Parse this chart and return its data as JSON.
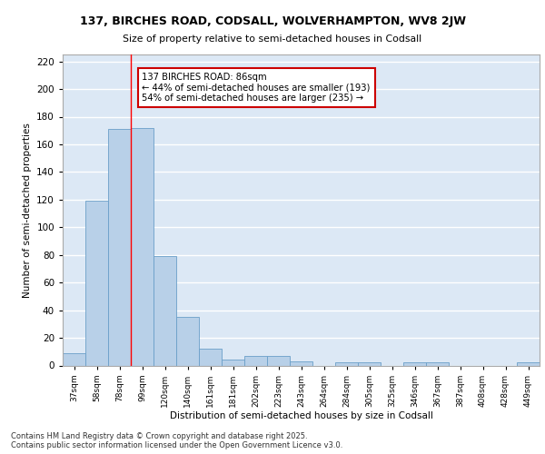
{
  "title1": "137, BIRCHES ROAD, CODSALL, WOLVERHAMPTON, WV8 2JW",
  "title2": "Size of property relative to semi-detached houses in Codsall",
  "xlabel": "Distribution of semi-detached houses by size in Codsall",
  "ylabel": "Number of semi-detached properties",
  "bar_labels": [
    "37sqm",
    "58sqm",
    "78sqm",
    "99sqm",
    "120sqm",
    "140sqm",
    "161sqm",
    "181sqm",
    "202sqm",
    "223sqm",
    "243sqm",
    "264sqm",
    "284sqm",
    "305sqm",
    "325sqm",
    "346sqm",
    "367sqm",
    "387sqm",
    "408sqm",
    "428sqm",
    "449sqm"
  ],
  "bar_values": [
    9,
    119,
    171,
    172,
    79,
    35,
    12,
    4,
    7,
    7,
    3,
    0,
    2,
    2,
    0,
    2,
    2,
    0,
    0,
    0,
    2
  ],
  "bar_color": "#b8d0e8",
  "bar_edge_color": "#6a9fc8",
  "background_color": "#dce8f5",
  "grid_color": "#ffffff",
  "annotation_text": "137 BIRCHES ROAD: 86sqm\n← 44% of semi-detached houses are smaller (193)\n54% of semi-detached houses are larger (235) →",
  "annotation_box_color": "#ffffff",
  "annotation_box_edge": "#cc0000",
  "red_line_x": 2.5,
  "ylim": [
    0,
    225
  ],
  "yticks": [
    0,
    20,
    40,
    60,
    80,
    100,
    120,
    140,
    160,
    180,
    200,
    220
  ],
  "footer_line1": "Contains HM Land Registry data © Crown copyright and database right 2025.",
  "footer_line2": "Contains public sector information licensed under the Open Government Licence v3.0."
}
